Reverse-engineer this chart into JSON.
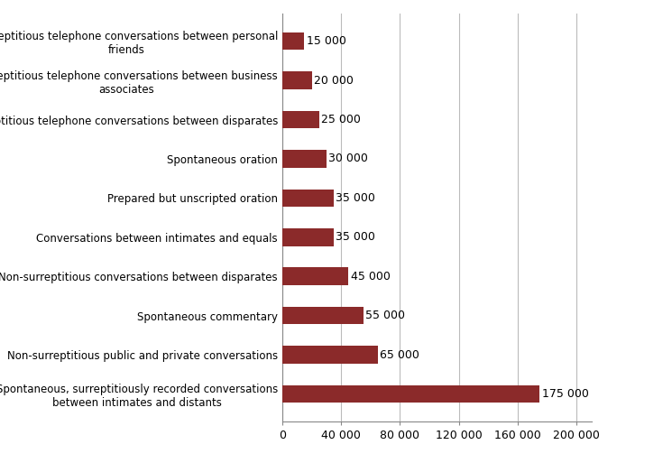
{
  "categories": [
    "Spontaneous, surreptitiously recorded conversations\nbetween intimates and distants",
    "Non-surreptitious public and private conversations",
    "Spontaneous commentary",
    "Non-surreptitious conversations between disparates",
    "Conversations between intimates and equals",
    "Prepared but unscripted oration",
    "Spontaneous oration",
    "Surreptitious telephone conversations between disparates",
    "Surreptitious telephone conversations between business\nassociates",
    "Surreptitious telephone conversations between personal\nfriends"
  ],
  "values": [
    175000,
    65000,
    55000,
    45000,
    35000,
    35000,
    30000,
    25000,
    20000,
    15000
  ],
  "bar_color": "#8B2A2A",
  "label_color": "#000000",
  "text_color": "#000000",
  "background_color": "#FFFFFF",
  "xlim": [
    0,
    210000
  ],
  "xticks": [
    0,
    40000,
    80000,
    120000,
    160000,
    200000
  ],
  "xtick_labels": [
    "0",
    "40 000",
    "80 000",
    "120 000",
    "160 000",
    "200 000"
  ],
  "value_labels": [
    "175 000",
    "65 000",
    "55 000",
    "45 000",
    "35 000",
    "35 000",
    "30 000",
    "25 000",
    "20 000",
    "15 000"
  ],
  "grid_color": "#BBBBBB",
  "figsize": [
    7.45,
    5.13
  ],
  "dpi": 100
}
